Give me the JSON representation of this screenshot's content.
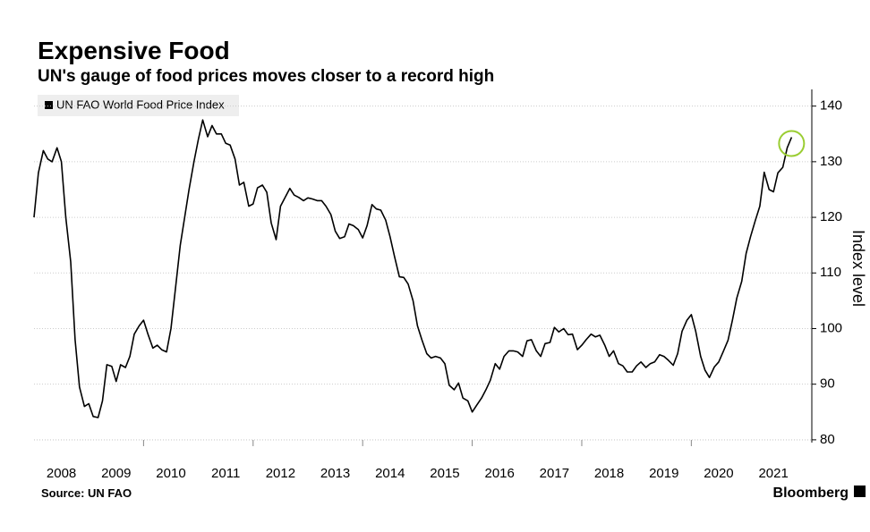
{
  "chart_data": {
    "type": "line",
    "title": "Expensive Food",
    "subtitle": "UN's gauge of food prices moves closer to a record high",
    "y_label": "Index level",
    "source": "Source: UN FAO",
    "brand": "Bloomberg",
    "x": [
      2008,
      2008.08,
      2008.17,
      2008.25,
      2008.33,
      2008.42,
      2008.5,
      2008.58,
      2008.67,
      2008.75,
      2008.83,
      2008.92,
      2009,
      2009.08,
      2009.17,
      2009.25,
      2009.33,
      2009.42,
      2009.5,
      2009.58,
      2009.67,
      2009.75,
      2009.83,
      2009.92,
      2010,
      2010.08,
      2010.17,
      2010.25,
      2010.33,
      2010.42,
      2010.5,
      2010.58,
      2010.67,
      2010.75,
      2010.83,
      2010.92,
      2011,
      2011.08,
      2011.17,
      2011.25,
      2011.33,
      2011.42,
      2011.5,
      2011.58,
      2011.67,
      2011.75,
      2011.83,
      2011.92,
      2012,
      2012.08,
      2012.17,
      2012.25,
      2012.33,
      2012.42,
      2012.5,
      2012.58,
      2012.67,
      2012.75,
      2012.83,
      2012.92,
      2013,
      2013.08,
      2013.17,
      2013.25,
      2013.33,
      2013.42,
      2013.5,
      2013.58,
      2013.67,
      2013.75,
      2013.83,
      2013.92,
      2014,
      2014.08,
      2014.17,
      2014.25,
      2014.33,
      2014.42,
      2014.5,
      2014.58,
      2014.67,
      2014.75,
      2014.83,
      2014.92,
      2015,
      2015.08,
      2015.17,
      2015.25,
      2015.33,
      2015.42,
      2015.5,
      2015.58,
      2015.67,
      2015.75,
      2015.83,
      2015.92,
      2016,
      2016.08,
      2016.17,
      2016.25,
      2016.33,
      2016.42,
      2016.5,
      2016.58,
      2016.67,
      2016.75,
      2016.83,
      2016.92,
      2017,
      2017.08,
      2017.17,
      2017.25,
      2017.33,
      2017.42,
      2017.5,
      2017.58,
      2017.67,
      2017.75,
      2017.83,
      2017.92,
      2018,
      2018.08,
      2018.17,
      2018.25,
      2018.33,
      2018.42,
      2018.5,
      2018.58,
      2018.67,
      2018.75,
      2018.83,
      2018.92,
      2019,
      2019.08,
      2019.17,
      2019.25,
      2019.33,
      2019.42,
      2019.5,
      2019.58,
      2019.67,
      2019.75,
      2019.83,
      2019.92,
      2020,
      2020.08,
      2020.17,
      2020.25,
      2020.33,
      2020.42,
      2020.5,
      2020.58,
      2020.67,
      2020.75,
      2020.83,
      2020.92,
      2021,
      2021.08,
      2021.17,
      2021.25,
      2021.33,
      2021.42,
      2021.5,
      2021.58,
      2021.67,
      2021.75,
      2021.83
    ],
    "series": [
      {
        "name": "UN FAO World Food Price Index",
        "color": "#000000",
        "values": [
          120,
          128,
          132,
          130.5,
          130,
          132.5,
          130,
          120,
          112,
          98,
          89.5,
          86,
          86.5,
          84.2,
          84,
          87,
          93.5,
          93.2,
          90.5,
          93.5,
          93,
          95,
          99,
          100.5,
          101.5,
          99,
          96.5,
          97,
          96.2,
          95.8,
          100,
          107,
          115,
          120,
          125,
          130,
          134,
          137.5,
          134.5,
          136.5,
          135,
          135,
          133.3,
          133,
          130.5,
          125.8,
          126.3,
          122,
          122.4,
          125.3,
          125.8,
          124.5,
          119,
          116,
          122,
          123.5,
          125.2,
          124,
          123.6,
          123,
          123.5,
          123.3,
          123,
          123,
          122,
          120.5,
          117.5,
          116.2,
          116.5,
          118.8,
          118.5,
          117.8,
          116.3,
          118.5,
          122.3,
          121.5,
          121.3,
          119.5,
          116.5,
          113,
          109.3,
          109.2,
          108,
          105,
          100.5,
          98,
          95.5,
          94.7,
          95,
          94.7,
          93.7,
          89.8,
          89,
          90.2,
          87.5,
          87,
          85,
          86.2,
          87.5,
          89,
          90.7,
          93.7,
          92.7,
          95,
          96,
          96,
          95.8,
          95,
          97.8,
          98,
          96,
          95,
          97.3,
          97.5,
          100.2,
          99.4,
          100,
          98.9,
          99,
          96.2,
          97,
          98,
          99,
          98.5,
          98.8,
          97,
          95,
          96,
          93.7,
          93.3,
          92.2,
          92.2,
          93.3,
          94,
          93,
          93.7,
          94,
          95.3,
          95,
          94.3,
          93.4,
          95.5,
          99.5,
          101.5,
          102.5,
          99.5,
          95,
          92.5,
          91.2,
          93.1,
          94,
          95.8,
          97.9,
          101.5,
          105.5,
          108.5,
          113.5,
          116.5,
          119.5,
          122,
          128.1,
          125,
          124.6,
          128,
          129,
          132.5,
          134.4
        ]
      }
    ],
    "highlight_color": "#9acd32",
    "xlim": [
      2008,
      2022.2
    ],
    "xticks": [
      {
        "value": 2008.5,
        "label": "2008"
      },
      {
        "value": 2009.5,
        "label": "2009"
      },
      {
        "value": 2010.5,
        "label": "2010"
      },
      {
        "value": 2011.5,
        "label": "2011"
      },
      {
        "value": 2012.5,
        "label": "2012"
      },
      {
        "value": 2013.5,
        "label": "2013"
      },
      {
        "value": 2014.5,
        "label": "2014"
      },
      {
        "value": 2015.5,
        "label": "2015"
      },
      {
        "value": 2016.5,
        "label": "2016"
      },
      {
        "value": 2017.5,
        "label": "2017"
      },
      {
        "value": 2018.5,
        "label": "2018"
      },
      {
        "value": 2019.5,
        "label": "2019"
      },
      {
        "value": 2020.5,
        "label": "2020"
      },
      {
        "value": 2021.5,
        "label": "2021"
      }
    ],
    "xtick_marks": [
      2010,
      2012,
      2014,
      2016,
      2018,
      2020
    ],
    "ylim": [
      79.5,
      143
    ],
    "yticks": [
      80,
      90,
      100,
      110,
      120,
      130,
      140
    ],
    "grid": true
  }
}
